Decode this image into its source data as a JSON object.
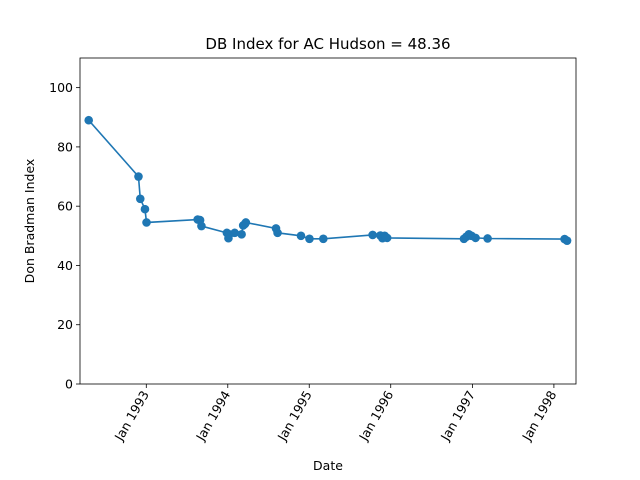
{
  "chart_data": {
    "type": "line",
    "title": "DB Index for AC Hudson = 48.36",
    "xlabel": "Date",
    "ylabel": "Don Bradman Index",
    "ylim": [
      0,
      110
    ],
    "xlim": [
      "1992-03-10",
      "1998-04-10"
    ],
    "yticks": [
      0,
      20,
      40,
      60,
      80,
      100
    ],
    "xticks": [
      {
        "date": "1993-01-01",
        "label": "Jan 1993"
      },
      {
        "date": "1994-01-01",
        "label": "Jan 1994"
      },
      {
        "date": "1995-01-01",
        "label": "Jan 1995"
      },
      {
        "date": "1996-01-01",
        "label": "Jan 1996"
      },
      {
        "date": "1997-01-01",
        "label": "Jan 1997"
      },
      {
        "date": "1998-01-01",
        "label": "Jan 1998"
      }
    ],
    "grid": false,
    "color": "#1f77b4",
    "series": [
      {
        "x": [
          "1992-04-18",
          "1992-11-27",
          "1992-12-05",
          "1992-12-26",
          "1993-01-02",
          "1993-08-19",
          "1993-08-30",
          "1993-09-05",
          "1993-12-28",
          "1994-01-04",
          "1994-01-08",
          "1994-02-01",
          "1994-03-04",
          "1994-03-11",
          "1994-03-19",
          "1994-03-23",
          "1994-08-05",
          "1994-08-12",
          "1994-11-25",
          "1995-01-02",
          "1995-03-05",
          "1995-10-12",
          "1995-11-15",
          "1995-11-25",
          "1995-12-05",
          "1995-12-08",
          "1995-12-16",
          "1996-11-24",
          "1996-12-05",
          "1996-12-16",
          "1996-12-28",
          "1997-01-15",
          "1997-03-10",
          "1998-02-18",
          "1998-03-01"
        ],
        "y": [
          89,
          70,
          62.5,
          59,
          54.5,
          55.5,
          55.3,
          53.3,
          51,
          49.2,
          50.5,
          51,
          50.5,
          53.5,
          54,
          54.5,
          52.5,
          51,
          50,
          49,
          49,
          50.3,
          50.1,
          49.2,
          50,
          49.5,
          49.3,
          49,
          49.7,
          50.5,
          50,
          49.3,
          49.1,
          48.9,
          48.36
        ]
      }
    ]
  }
}
